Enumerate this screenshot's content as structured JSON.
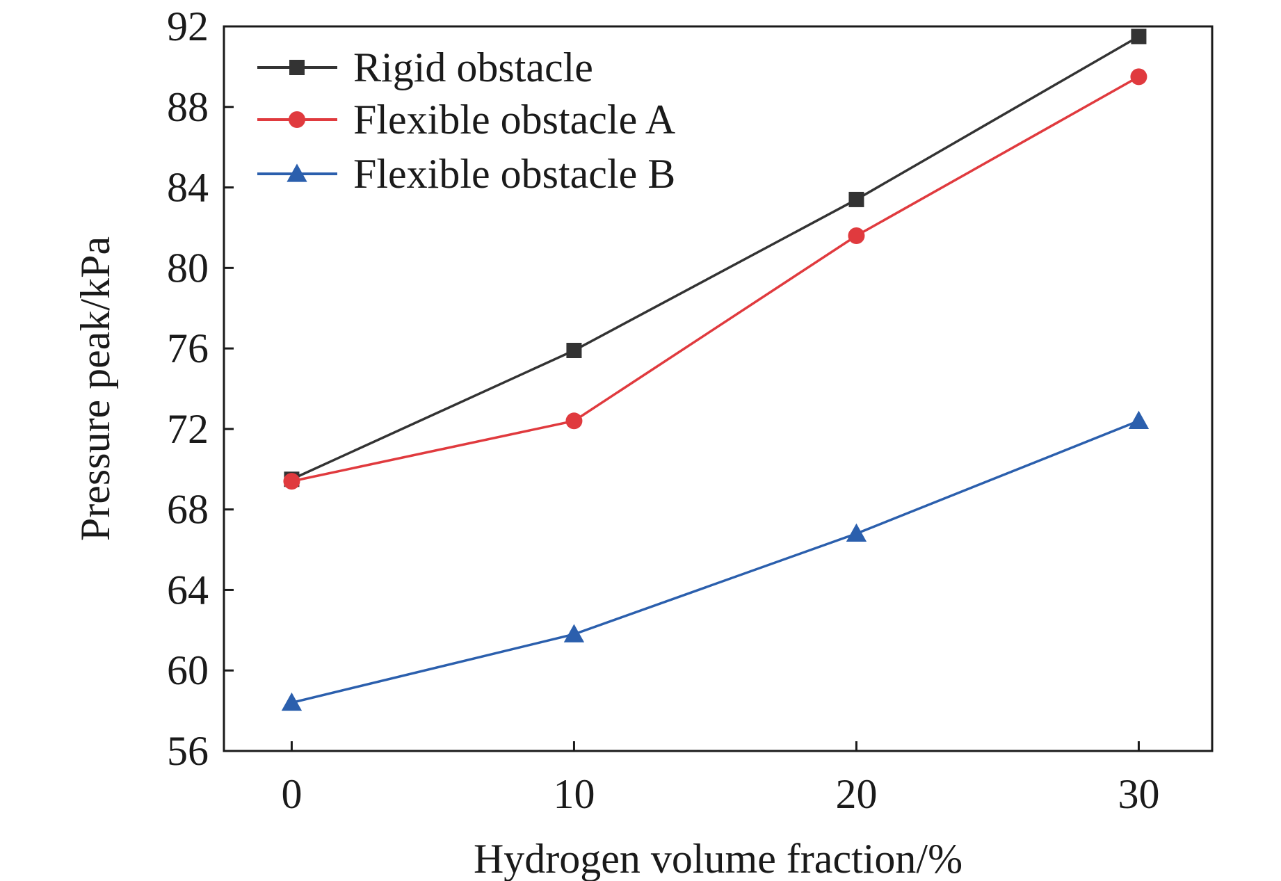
{
  "chart_data": {
    "type": "line",
    "xlabel": "Hydrogen volume fraction/%",
    "ylabel": "Pressure peak/kPa",
    "x": [
      0,
      10,
      20,
      30
    ],
    "xlim": [
      -2.4,
      32.6
    ],
    "ylim": [
      56,
      92
    ],
    "xticks": [
      "0",
      "10",
      "20",
      "30"
    ],
    "yticks": [
      "56",
      "60",
      "64",
      "68",
      "72",
      "76",
      "80",
      "84",
      "88",
      "92"
    ],
    "grid": false,
    "legend_position": "top-left",
    "series": [
      {
        "name": "Rigid obstacle",
        "marker": "square",
        "color": "#333333",
        "values": [
          69.5,
          75.9,
          83.4,
          91.5
        ]
      },
      {
        "name": "Flexible obstacle A",
        "marker": "circle",
        "color": "#e03a3e",
        "values": [
          69.4,
          72.4,
          81.6,
          89.5
        ]
      },
      {
        "name": "Flexible obstacle B",
        "marker": "triangle",
        "color": "#2b5fad",
        "values": [
          58.4,
          61.8,
          66.8,
          72.4
        ]
      }
    ]
  }
}
